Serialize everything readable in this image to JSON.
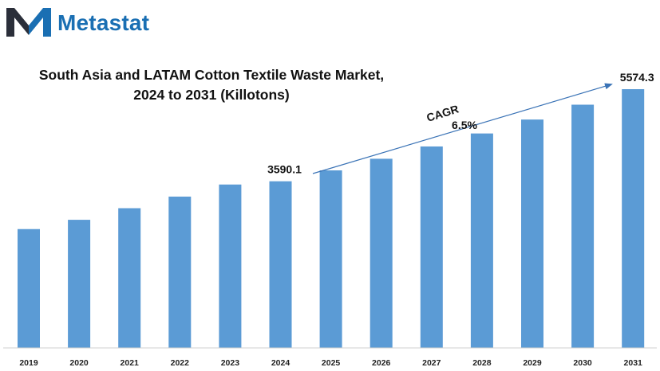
{
  "brand": {
    "name": "Metastat",
    "color": "#1a6fb3",
    "dark": "#2b2f3a"
  },
  "title_line1": "South Asia and LATAM Cotton Textile Waste Market,",
  "title_line2": "2024 to 2031 (Killotons)",
  "cagr": {
    "label": "CAGR",
    "value": "6.5%"
  },
  "colors": {
    "bar": "#5b9bd5",
    "arrow": "#3a73b6"
  },
  "chart_data": {
    "type": "bar",
    "title": "South Asia and LATAM Cotton Textile Waste Market, 2024 to 2031 (Killotons)",
    "categories": [
      "2019",
      "2020",
      "2021",
      "2022",
      "2023",
      "2024",
      "2025",
      "2026",
      "2027",
      "2028",
      "2029",
      "2030",
      "2031"
    ],
    "values": [
      2560,
      2760,
      3010,
      3260,
      3520,
      3590.1,
      3825,
      4075,
      4340,
      4620,
      4920,
      5240,
      5574.3
    ],
    "data_labels": {
      "2024": "3590.1",
      "2031": "5574.3"
    },
    "ylim": [
      0,
      5900
    ],
    "grid": false,
    "legend": "none"
  }
}
